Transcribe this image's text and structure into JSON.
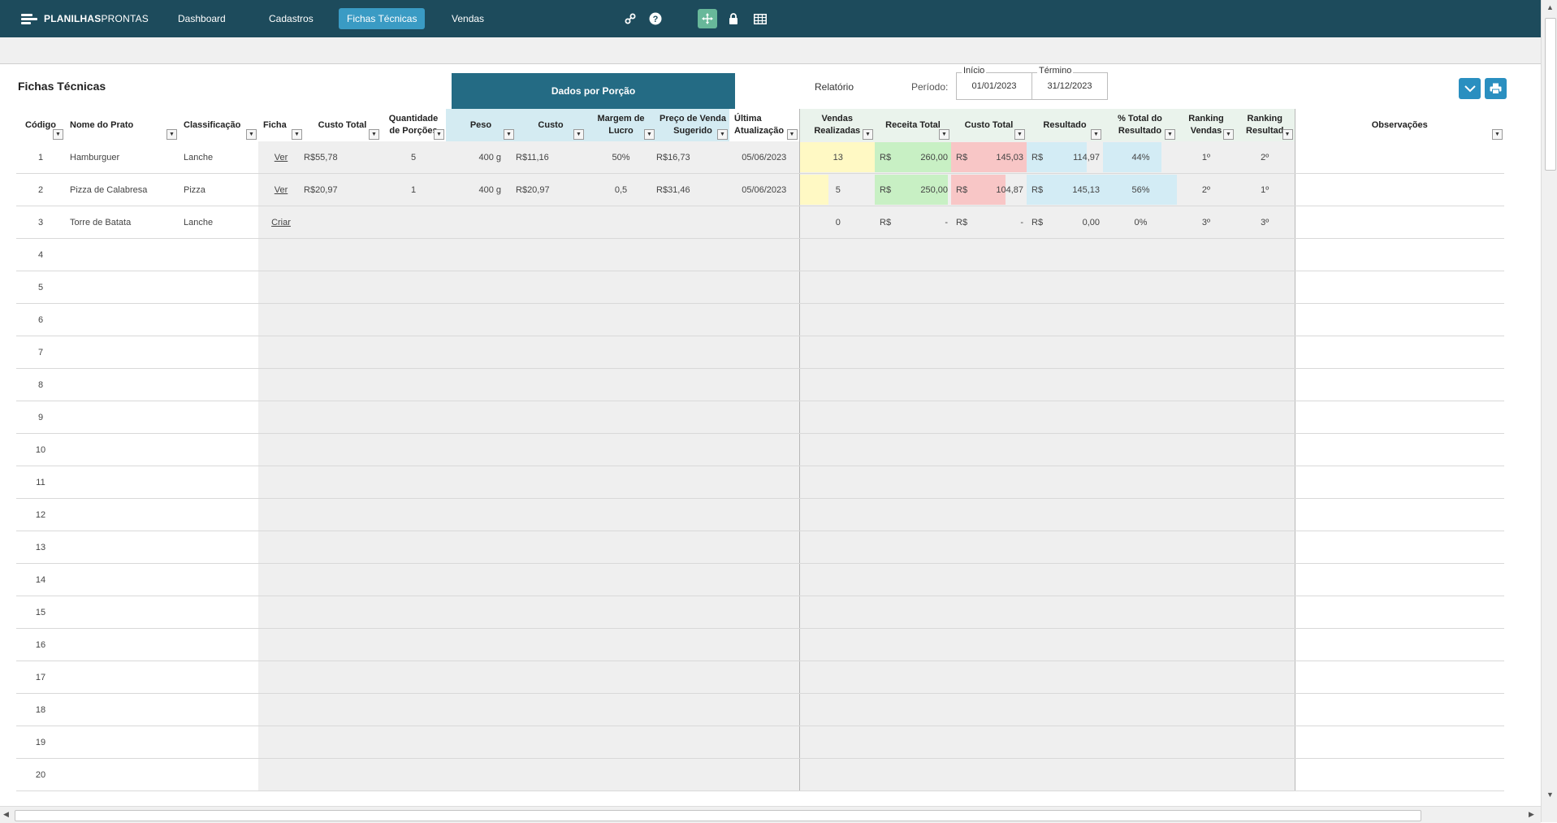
{
  "topbar": {
    "logo_bold": "PLANILHAS",
    "logo_light": "PRONTAS",
    "nav": [
      "Dashboard",
      "Cadastros",
      "Fichas Técnicas",
      "Vendas"
    ],
    "active_nav": "Fichas Técnicas",
    "icons": [
      "link-icon",
      "help-icon",
      "move-icon",
      "lock-icon",
      "grid-icon"
    ]
  },
  "page": {
    "title": "Fichas Técnicas",
    "dados_banner": "Dados por Porção",
    "relatorio": "Relatório",
    "periodo_label": "Período:",
    "inicio_label": "Início",
    "inicio_value": "01/01/2023",
    "termino_label": "Término",
    "termino_value": "31/12/2023"
  },
  "colors": {
    "topbar": "#1d4b5c",
    "active_tab": "#3a9bc4",
    "banner": "#246b84",
    "vendas_bar": "#fff9c4",
    "receita_bar": "#c8f0c4",
    "custo_bar": "#f8c6c6",
    "resultado_bar": "#d3ecf5",
    "pct_bar": "#d3ecf5"
  },
  "headers": {
    "codigo": [
      "Código"
    ],
    "nome": [
      "Nome do Prato"
    ],
    "classificacao": [
      "Classificação"
    ],
    "ficha": [
      "Ficha"
    ],
    "custo_total": [
      "Custo Total"
    ],
    "qtd_porcoes": [
      "Quantidade",
      "de Porções"
    ],
    "peso": [
      "Peso"
    ],
    "custo": [
      "Custo"
    ],
    "margem": [
      "Margem de",
      "Lucro"
    ],
    "preco": [
      "Preço de Venda",
      "Sugerido"
    ],
    "ultima": [
      "Última",
      "Atualização"
    ],
    "vendas": [
      "Vendas",
      "Realizadas"
    ],
    "receita": [
      "Receita Total"
    ],
    "custo_total_r": [
      "Custo Total"
    ],
    "resultado": [
      "Resultado"
    ],
    "pct": [
      "% Total do",
      "Resultado"
    ],
    "rank_vendas": [
      "Ranking",
      "Vendas"
    ],
    "rank_resultado": [
      "Ranking",
      "Resultad"
    ],
    "observacoes": [
      "Observações"
    ]
  },
  "currency": "R$",
  "rows": [
    {
      "codigo": "1",
      "nome": "Hamburguer",
      "classificacao": "Lanche",
      "ficha": "Ver",
      "custo_total": "55,78",
      "qtd": "5",
      "peso": "400 g",
      "custo": "11,16",
      "margem": "50%",
      "preco": "16,73",
      "atualizacao": "05/06/2023",
      "vendas": "13",
      "receita": "260,00",
      "custo_r": "145,03",
      "resultado": "114,97",
      "pct": "44%",
      "rank_v": "1º",
      "rank_r": "2º",
      "levels": {
        "vendas": 1.0,
        "receita": 1.0,
        "custo_r": 1.0,
        "resultado": 0.79,
        "pct": 0.79
      }
    },
    {
      "codigo": "2",
      "nome": "Pizza de Calabresa",
      "classificacao": "Pizza",
      "ficha": "Ver",
      "custo_total": "20,97",
      "qtd": "1",
      "peso": "400 g",
      "custo": "20,97",
      "margem": "0,5",
      "preco": "31,46",
      "atualizacao": "05/06/2023",
      "vendas": "5",
      "receita": "250,00",
      "custo_r": "104,87",
      "resultado": "145,13",
      "pct": "56%",
      "rank_v": "2º",
      "rank_r": "1º",
      "levels": {
        "vendas": 0.38,
        "receita": 0.96,
        "custo_r": 0.72,
        "resultado": 1.0,
        "pct": 1.0
      }
    },
    {
      "codigo": "3",
      "nome": "Torre de Batata",
      "classificacao": "Lanche",
      "ficha": "Criar",
      "custo_total": "",
      "qtd": "",
      "peso": "",
      "custo": "",
      "margem": "",
      "preco": "",
      "atualizacao": "",
      "vendas": "0",
      "receita": "-",
      "custo_r": "-",
      "resultado": "0,00",
      "pct": "0%",
      "rank_v": "3º",
      "rank_r": "3º",
      "levels": {
        "vendas": 0,
        "receita": 0,
        "custo_r": 0,
        "resultado": 0,
        "pct": 0
      }
    },
    {
      "codigo": "4"
    },
    {
      "codigo": "5"
    },
    {
      "codigo": "6"
    },
    {
      "codigo": "7"
    },
    {
      "codigo": "8"
    },
    {
      "codigo": "9"
    },
    {
      "codigo": "10"
    },
    {
      "codigo": "11"
    },
    {
      "codigo": "12"
    },
    {
      "codigo": "13"
    },
    {
      "codigo": "14"
    },
    {
      "codigo": "15"
    },
    {
      "codigo": "16"
    },
    {
      "codigo": "17"
    },
    {
      "codigo": "18"
    },
    {
      "codigo": "19"
    },
    {
      "codigo": "20"
    }
  ]
}
